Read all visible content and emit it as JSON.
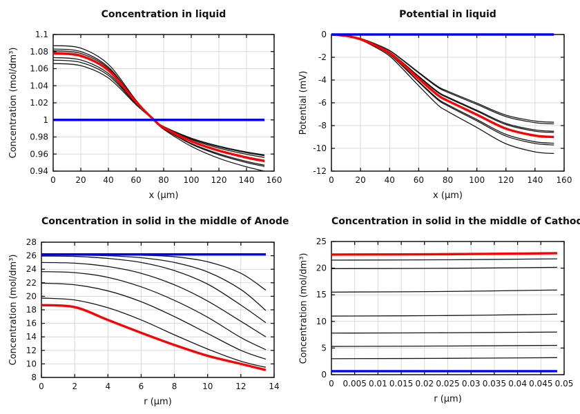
{
  "colors": {
    "background": "#ffffff",
    "grid": "#d9d9d9",
    "frame": "#000000",
    "text": "#111111",
    "series_black": "#151515",
    "series_red": "#ff0000",
    "series_blue": "#0000ff"
  },
  "chart_data": [
    {
      "id": "concentration-in-liquid",
      "type": "line",
      "title": "Concentration in liquid",
      "xlabel": "x (µm)",
      "ylabel": "Concentration (mol/dm³)",
      "xlim": [
        0,
        160
      ],
      "ylim": [
        0.94,
        1.1
      ],
      "grid": true,
      "legend": "none",
      "xticks": {
        "values": [
          0,
          20,
          40,
          60,
          80,
          100,
          120,
          140,
          160
        ],
        "labels": [
          "0",
          "20",
          "40",
          "60",
          "80",
          "100",
          "120",
          "140",
          "160"
        ]
      },
      "yticks": {
        "values": [
          0.94,
          0.96,
          0.98,
          1,
          1.02,
          1.04,
          1.06,
          1.08,
          1.1
        ],
        "labels": [
          "0.94",
          "0.96",
          "0.98",
          "1",
          "1.02",
          "1.04",
          "1.06",
          "1.08",
          "1.1"
        ]
      },
      "series": [
        {
          "color": "#151515",
          "width": 1.3,
          "x": [
            0,
            20,
            40,
            60,
            73,
            80,
            100,
            120,
            140,
            153
          ],
          "y": [
            1.087,
            1.084,
            1.065,
            1.023,
            1,
            0.989,
            0.969,
            0.955,
            0.945,
            0.94
          ]
        },
        {
          "color": "#151515",
          "width": 1.3,
          "x": [
            0,
            20,
            40,
            60,
            73,
            80,
            100,
            120,
            140,
            153
          ],
          "y": [
            1.083,
            1.08,
            1.0618,
            1.0223,
            1,
            0.9898,
            0.9716,
            0.9591,
            0.95,
            0.9455
          ]
        },
        {
          "color": "#151515",
          "width": 1.3,
          "x": [
            0,
            20,
            40,
            60,
            73,
            80,
            100,
            120,
            140,
            153
          ],
          "y": [
            1.081,
            1.0779,
            1.0603,
            1.0218,
            1,
            0.9901,
            0.9724,
            0.9603,
            0.9514,
            0.947
          ]
        },
        {
          "color": "#151515",
          "width": 1.3,
          "x": [
            0,
            20,
            40,
            60,
            73,
            80,
            100,
            120,
            140,
            153
          ],
          "y": [
            1.079,
            1.076,
            1.0588,
            1.0213,
            1,
            0.9908,
            0.9745,
            0.9633,
            0.9551,
            0.951
          ]
        },
        {
          "color": "#151515",
          "width": 1.3,
          "x": [
            0,
            20,
            40,
            60,
            73,
            80,
            100,
            120,
            140,
            153
          ],
          "y": [
            1.073,
            1.0702,
            1.0543,
            1.0196,
            1,
            0.9918,
            0.9771,
            0.967,
            0.9597,
            0.956
          ]
        },
        {
          "color": "#151515",
          "width": 1.3,
          "x": [
            0,
            20,
            40,
            60,
            73,
            80,
            100,
            120,
            140,
            153
          ],
          "y": [
            1.07,
            1.0673,
            1.0521,
            1.0188,
            1,
            0.9921,
            0.9781,
            0.9685,
            0.9615,
            0.958
          ]
        },
        {
          "color": "#151515",
          "width": 1.3,
          "x": [
            0,
            20,
            40,
            60,
            73,
            80,
            100,
            120,
            140,
            153
          ],
          "y": [
            1.066,
            1.0635,
            1.0491,
            1.0178,
            1,
            0.9923,
            0.9786,
            0.9693,
            0.9624,
            0.959
          ]
        },
        {
          "color": "#ff0000",
          "width": 3.4,
          "x": [
            0,
            20,
            40,
            60,
            73,
            80,
            100,
            120,
            140,
            153
          ],
          "y": [
            1.078,
            1.075,
            1.058,
            1.021,
            1,
            0.991,
            0.975,
            0.964,
            0.956,
            0.952
          ]
        },
        {
          "color": "#0000ff",
          "width": 3.4,
          "x": [
            0,
            153
          ],
          "y": [
            1,
            1
          ]
        }
      ]
    },
    {
      "id": "potential-in-liquid",
      "type": "line",
      "title": "Potential in liquid",
      "xlabel": "x (µm)",
      "ylabel": "Potential (mV)",
      "xlim": [
        0,
        160
      ],
      "ylim": [
        -12,
        0
      ],
      "grid": true,
      "legend": "none",
      "xticks": {
        "values": [
          0,
          20,
          40,
          60,
          80,
          100,
          120,
          140,
          160
        ],
        "labels": [
          "0",
          "20",
          "40",
          "60",
          "80",
          "100",
          "120",
          "140",
          "160"
        ]
      },
      "yticks": {
        "values": [
          0,
          -2,
          -4,
          -6,
          -8,
          -10,
          -12
        ],
        "labels": [
          "0",
          "-2",
          "-4",
          "-6",
          "-8",
          "-10",
          "-12"
        ]
      },
      "series": [
        {
          "color": "#151515",
          "width": 1.3,
          "x": [
            0,
            10,
            20,
            30,
            40,
            50,
            60,
            73,
            80,
            100,
            120,
            140,
            153
          ],
          "y": [
            0,
            -0.1,
            -0.35,
            -0.81,
            -1.4,
            -2.33,
            -3.32,
            -4.55,
            -4.98,
            -6.03,
            -7.08,
            -7.6,
            -7.7
          ]
        },
        {
          "color": "#151515",
          "width": 1.3,
          "x": [
            0,
            10,
            20,
            30,
            40,
            50,
            60,
            73,
            80,
            100,
            120,
            140,
            153
          ],
          "y": [
            0,
            -0.1,
            -0.36,
            -0.83,
            -1.42,
            -2.37,
            -3.38,
            -4.63,
            -5.08,
            -6.14,
            -7.21,
            -7.74,
            -7.85
          ]
        },
        {
          "color": "#151515",
          "width": 1.3,
          "x": [
            0,
            10,
            20,
            30,
            40,
            50,
            60,
            73,
            80,
            100,
            120,
            140,
            153
          ],
          "y": [
            0,
            -0.11,
            -0.39,
            -0.9,
            -1.54,
            -2.57,
            -3.66,
            -5.01,
            -5.49,
            -6.65,
            -7.81,
            -8.38,
            -8.5
          ]
        },
        {
          "color": "#151515",
          "width": 1.3,
          "x": [
            0,
            10,
            20,
            30,
            40,
            50,
            60,
            73,
            80,
            100,
            120,
            140,
            153
          ],
          "y": [
            0,
            -0.11,
            -0.39,
            -0.91,
            -1.56,
            -2.6,
            -3.71,
            -5.08,
            -5.56,
            -6.73,
            -7.91,
            -8.49,
            -8.6
          ]
        },
        {
          "color": "#151515",
          "width": 1.3,
          "x": [
            0,
            10,
            20,
            30,
            40,
            50,
            60,
            73,
            80,
            100,
            120,
            140,
            153
          ],
          "y": [
            0,
            -0.13,
            -0.44,
            -1.01,
            -1.73,
            -2.89,
            -4.12,
            -5.63,
            -6.17,
            -7.47,
            -8.77,
            -9.42,
            -9.55
          ]
        },
        {
          "color": "#151515",
          "width": 1.3,
          "x": [
            0,
            10,
            20,
            30,
            40,
            50,
            60,
            73,
            80,
            100,
            120,
            140,
            153
          ],
          "y": [
            0,
            -0.13,
            -0.44,
            -1.02,
            -1.76,
            -2.93,
            -4.18,
            -5.72,
            -6.27,
            -7.59,
            -8.92,
            -9.57,
            -9.7
          ]
        },
        {
          "color": "#151515",
          "width": 1.3,
          "x": [
            0,
            10,
            20,
            30,
            40,
            50,
            60,
            73,
            80,
            100,
            120,
            140,
            153
          ],
          "y": [
            0,
            -0.14,
            -0.48,
            -1.1,
            -1.89,
            -3.16,
            -4.5,
            -6.17,
            -6.76,
            -8.17,
            -9.6,
            -10.31,
            -10.45
          ]
        },
        {
          "color": "#ff0000",
          "width": 3.4,
          "x": [
            0,
            10,
            20,
            30,
            40,
            50,
            60,
            73,
            80,
            100,
            120,
            140,
            153
          ],
          "y": [
            0,
            -0.12,
            -0.41,
            -0.95,
            -1.63,
            -2.72,
            -3.88,
            -5.31,
            -5.82,
            -7.04,
            -8.27,
            -8.88,
            -9.0
          ]
        },
        {
          "color": "#0000ff",
          "width": 3.4,
          "x": [
            0,
            153
          ],
          "y": [
            0,
            0
          ]
        }
      ]
    },
    {
      "id": "concentration-in-solid-anode",
      "type": "line",
      "title": "Concentration in solid in the middle of Anode",
      "xlabel": "r (µm)",
      "ylabel": "Concentration (mol/dm³)",
      "xlim": [
        0,
        14
      ],
      "ylim": [
        8,
        28
      ],
      "grid": true,
      "legend": "none",
      "xticks": {
        "values": [
          0,
          2,
          4,
          6,
          8,
          10,
          12,
          14
        ],
        "labels": [
          "0",
          "2",
          "4",
          "6",
          "8",
          "10",
          "12",
          "14"
        ]
      },
      "yticks": {
        "values": [
          8,
          10,
          12,
          14,
          16,
          18,
          20,
          22,
          24,
          26,
          28
        ],
        "labels": [
          "8",
          "10",
          "12",
          "14",
          "16",
          "18",
          "20",
          "22",
          "24",
          "26",
          "28"
        ]
      },
      "series": [
        {
          "color": "#151515",
          "width": 1.3,
          "x": [
            0,
            2,
            4,
            6,
            8,
            10,
            12,
            13.5
          ],
          "y": [
            26.18,
            26.18,
            26.15,
            26.08,
            25.85,
            25.1,
            23.4,
            20.9
          ]
        },
        {
          "color": "#151515",
          "width": 1.3,
          "x": [
            0,
            2,
            4,
            6,
            8,
            10,
            12,
            13.5
          ],
          "y": [
            26.1,
            26.08,
            26.0,
            25.7,
            25.0,
            23.6,
            21.0,
            17.9
          ]
        },
        {
          "color": "#151515",
          "width": 1.3,
          "x": [
            0,
            2,
            4,
            6,
            8,
            10,
            12,
            13.5
          ],
          "y": [
            25.95,
            25.9,
            25.6,
            25.0,
            23.8,
            21.8,
            18.7,
            16.1
          ]
        },
        {
          "color": "#151515",
          "width": 1.3,
          "x": [
            0,
            2,
            4,
            6,
            8,
            10,
            12,
            13.5
          ],
          "y": [
            25.0,
            24.9,
            24.4,
            23.4,
            21.7,
            19.3,
            16.3,
            14.0
          ]
        },
        {
          "color": "#151515",
          "width": 1.3,
          "x": [
            0,
            2,
            4,
            6,
            8,
            10,
            12,
            13.5
          ],
          "y": [
            23.65,
            23.5,
            22.8,
            21.4,
            19.4,
            16.9,
            13.9,
            12.1
          ]
        },
        {
          "color": "#151515",
          "width": 1.3,
          "x": [
            0,
            2,
            4,
            6,
            8,
            10,
            12,
            13.5
          ],
          "y": [
            21.95,
            21.7,
            20.8,
            19.2,
            17.0,
            14.5,
            12.0,
            10.7
          ]
        },
        {
          "color": "#151515",
          "width": 1.3,
          "x": [
            0,
            2,
            4,
            6,
            8,
            10,
            12,
            13.5
          ],
          "y": [
            19.74,
            19.45,
            18.3,
            16.5,
            14.3,
            12.2,
            10.4,
            9.5
          ]
        },
        {
          "color": "#ff0000",
          "width": 3.4,
          "x": [
            0,
            2,
            4,
            6,
            8,
            10,
            12,
            13.5
          ],
          "y": [
            18.7,
            18.4,
            16.5,
            14.6,
            12.8,
            11.2,
            10.0,
            9.1
          ]
        },
        {
          "color": "#0000ff",
          "width": 3.4,
          "x": [
            0,
            13.5
          ],
          "y": [
            26.2,
            26.2
          ]
        }
      ]
    },
    {
      "id": "concentration-in-solid-cathode",
      "type": "line",
      "title": "Concentration in solid in the middle of Cathode",
      "xlabel": "r (µm)",
      "ylabel": "Concentration (mol/dm³)",
      "xlim": [
        0,
        0.05
      ],
      "ylim": [
        0,
        25
      ],
      "grid": true,
      "legend": "none",
      "xticks": {
        "values": [
          0,
          0.005,
          0.01,
          0.015,
          0.02,
          0.025,
          0.03,
          0.035,
          0.04,
          0.045,
          0.05
        ],
        "labels": [
          "0",
          "0.005",
          "0.01",
          "0.015",
          "0.02",
          "0.025",
          "0.03",
          "0.035",
          "0.04",
          "0.045",
          "0.05"
        ]
      },
      "yticks": {
        "values": [
          0,
          5,
          10,
          15,
          20,
          25
        ],
        "labels": [
          "0",
          "5",
          "10",
          "15",
          "20",
          "25"
        ]
      },
      "series": [
        {
          "color": "#151515",
          "width": 1.3,
          "x": [
            0,
            0.025,
            0.0485
          ],
          "y": [
            21.5,
            21.57,
            21.75
          ]
        },
        {
          "color": "#151515",
          "width": 1.3,
          "x": [
            0,
            0.025,
            0.0485
          ],
          "y": [
            19.9,
            19.97,
            20.15
          ]
        },
        {
          "color": "#151515",
          "width": 1.3,
          "x": [
            0,
            0.025,
            0.0485
          ],
          "y": [
            15.5,
            15.62,
            15.9
          ]
        },
        {
          "color": "#151515",
          "width": 1.3,
          "x": [
            0,
            0.025,
            0.0485
          ],
          "y": [
            11.0,
            11.1,
            11.35
          ]
        },
        {
          "color": "#151515",
          "width": 1.3,
          "x": [
            0,
            0.025,
            0.0485
          ],
          "y": [
            7.8,
            7.87,
            8.0
          ]
        },
        {
          "color": "#151515",
          "width": 1.3,
          "x": [
            0,
            0.025,
            0.0485
          ],
          "y": [
            5.3,
            5.38,
            5.5
          ]
        },
        {
          "color": "#151515",
          "width": 1.3,
          "x": [
            0,
            0.025,
            0.0485
          ],
          "y": [
            3.0,
            3.07,
            3.2
          ]
        },
        {
          "color": "#ff0000",
          "width": 3.4,
          "x": [
            0,
            0.025,
            0.0485
          ],
          "y": [
            22.55,
            22.62,
            22.8
          ]
        },
        {
          "color": "#0000ff",
          "width": 3.4,
          "x": [
            0,
            0.025,
            0.0485
          ],
          "y": [
            0.65,
            0.65,
            0.65
          ]
        }
      ]
    }
  ]
}
